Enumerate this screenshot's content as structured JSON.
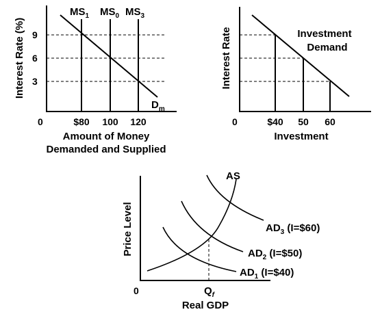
{
  "money_market": {
    "y_axis_label": "Interest Rate (%)",
    "x_axis_label_line1": "Amount of Money",
    "x_axis_label_line2": "Demanded and Supplied",
    "origin": "0",
    "y_ticks": [
      "9",
      "6",
      "3"
    ],
    "x_ticks": [
      "$80",
      "100",
      "120"
    ],
    "supply_labels": [
      {
        "base": "MS",
        "sub": "1"
      },
      {
        "base": "MS",
        "sub": "0"
      },
      {
        "base": "MS",
        "sub": "3"
      }
    ],
    "demand_label": {
      "base": "D",
      "sub": "m"
    }
  },
  "investment_market": {
    "y_axis_label": "Interest Rate",
    "x_axis_label": "Investment",
    "origin": "0",
    "x_ticks": [
      "$40",
      "50",
      "60"
    ],
    "curve_label_line1": "Investment",
    "curve_label_line2": "Demand"
  },
  "ad_as": {
    "y_axis_label": "Price Level",
    "x_axis_label": "Real GDP",
    "origin": "0",
    "x_tick": {
      "base": "Q",
      "sub": "f"
    },
    "as_label": "AS",
    "ad_labels": [
      {
        "base": "AD",
        "sub": "3",
        "cond": "(I=$60)"
      },
      {
        "base": "AD",
        "sub": "2",
        "cond": "(I=$50)"
      },
      {
        "base": "AD",
        "sub": "1",
        "cond": "(I=$40)"
      }
    ]
  }
}
